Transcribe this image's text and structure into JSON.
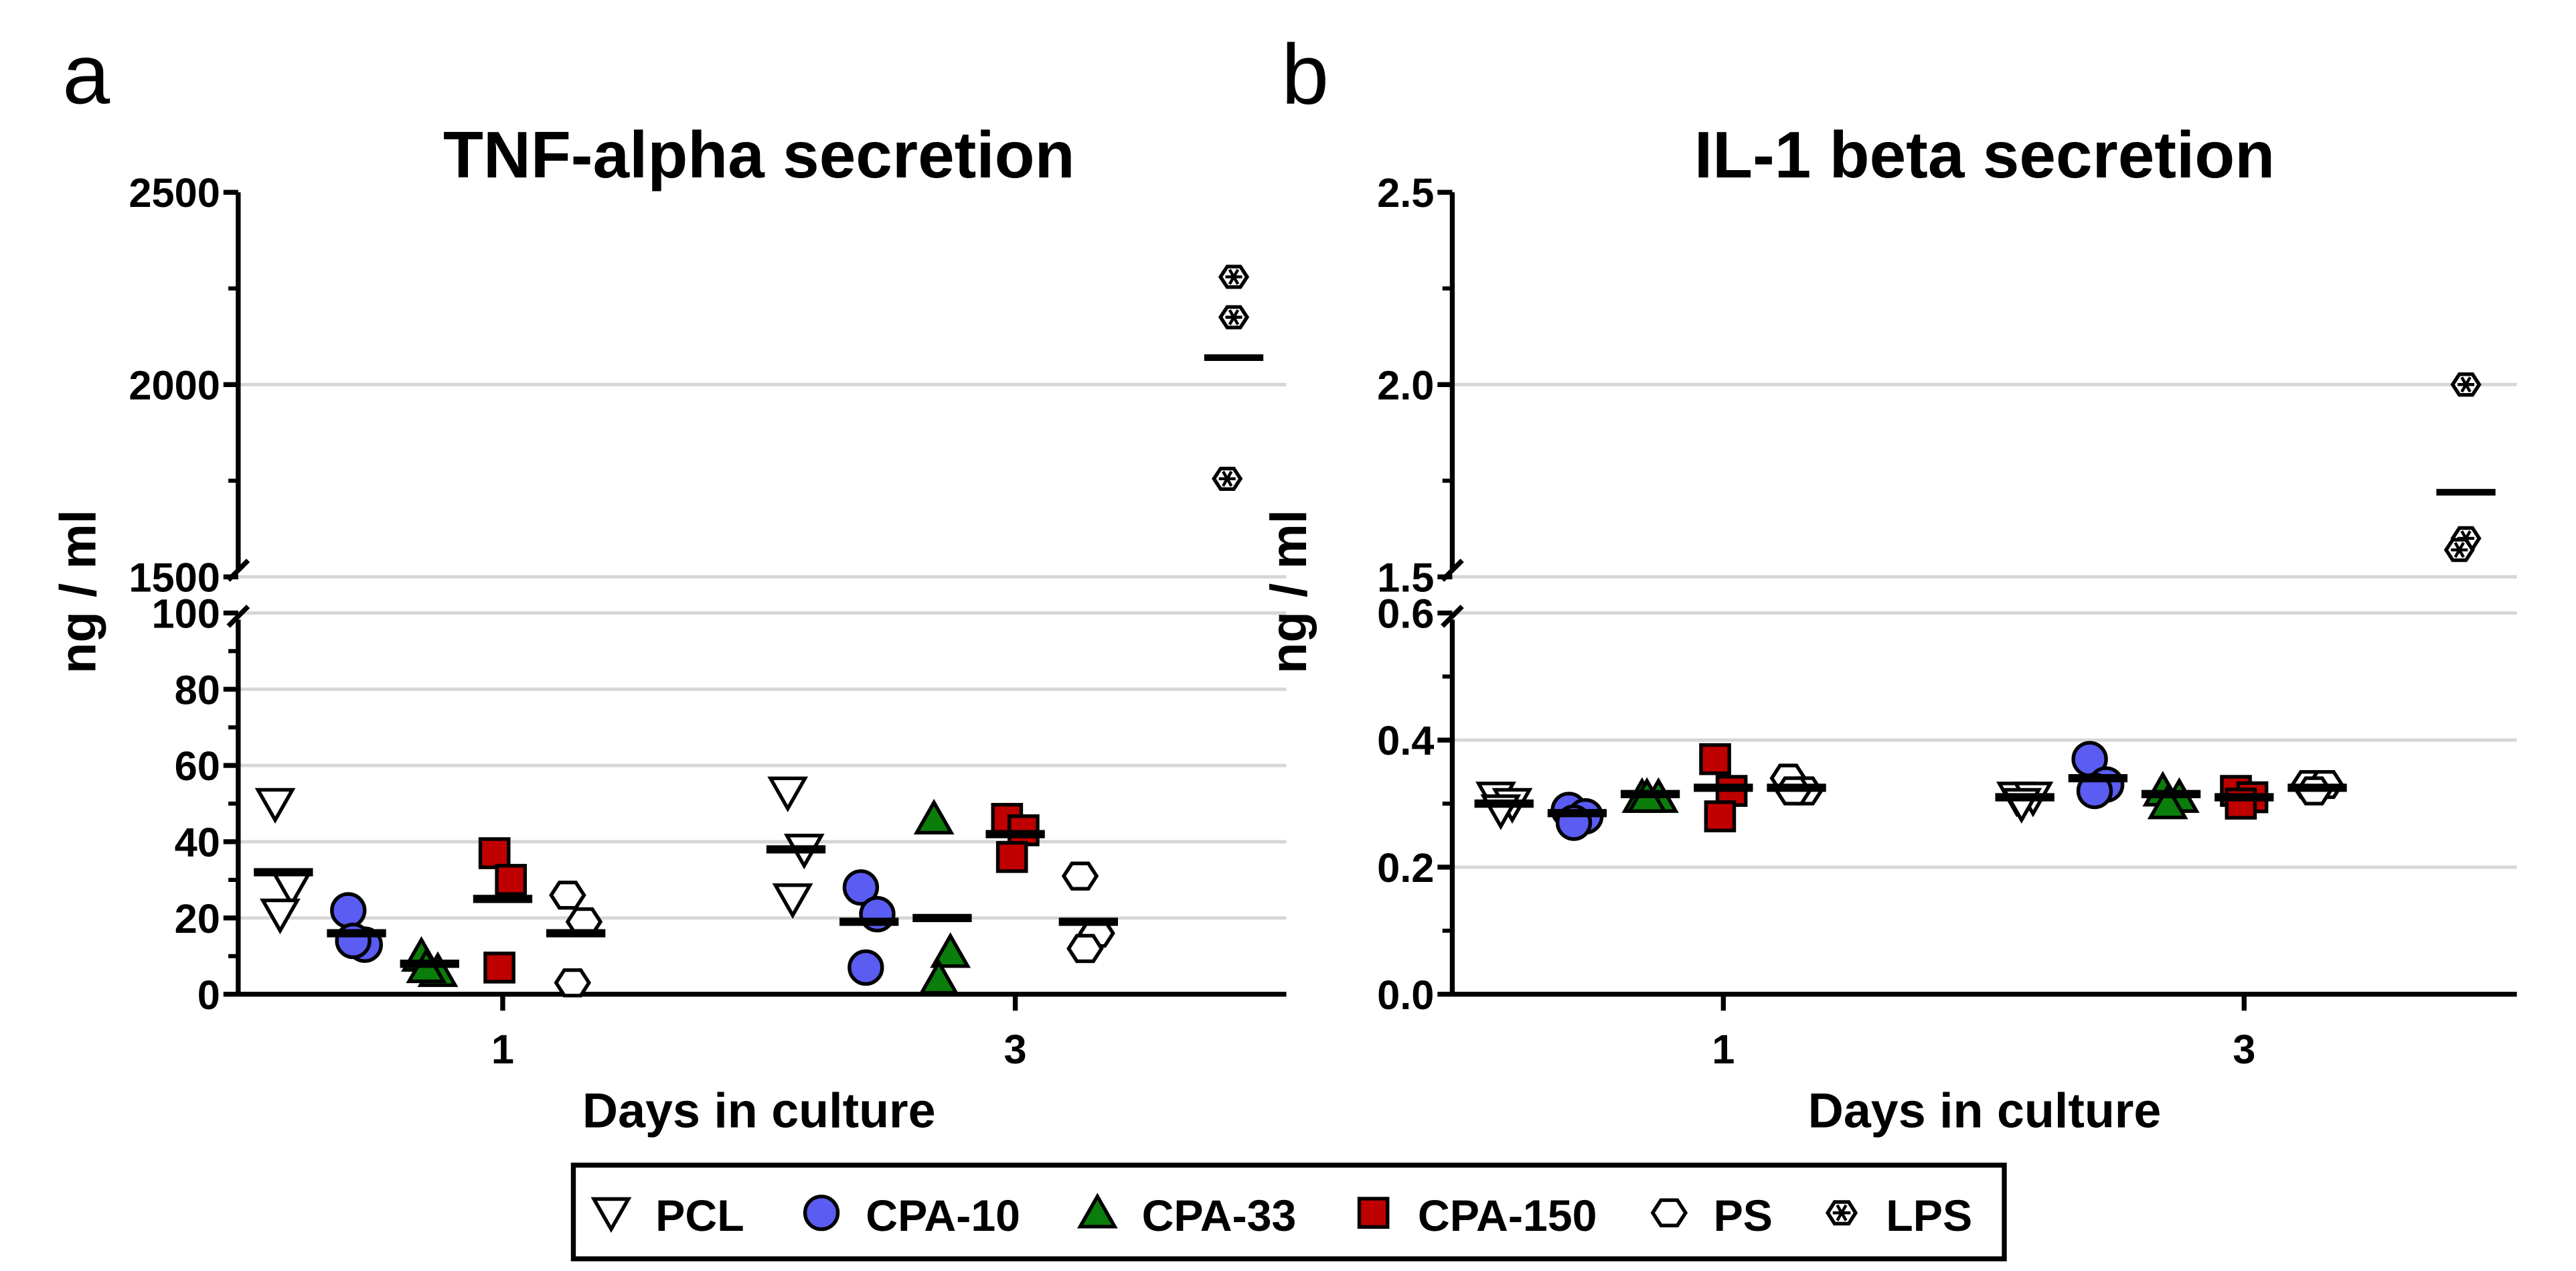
{
  "panels": [
    "a",
    "b"
  ],
  "legend": [
    {
      "name": "PCL",
      "symbol": "triangle-down-open",
      "color": "#ffffff"
    },
    {
      "name": "CPA-10",
      "symbol": "circle",
      "color": "#5b5cf2"
    },
    {
      "name": "CPA-33",
      "symbol": "triangle-up",
      "color": "#0b7d0b"
    },
    {
      "name": "CPA-150",
      "symbol": "square",
      "color": "#bf0000"
    },
    {
      "name": "PS",
      "symbol": "hexagon-open",
      "color": "#ffffff"
    },
    {
      "name": "LPS",
      "symbol": "hexagon-asterisk",
      "color": "#ffffff"
    }
  ],
  "chart_data": [
    {
      "type": "scatter",
      "title": "TNF-alpha secretion",
      "ylabel": "ng / ml",
      "xlabel": "Days in culture",
      "x_categories": [
        "1",
        "3"
      ],
      "y_axis_broken": true,
      "ylim_lower": [
        0,
        100
      ],
      "yticks_lower": [
        "0",
        "20",
        "40",
        "60",
        "80",
        "100"
      ],
      "ylim_upper": [
        1500,
        2500
      ],
      "yticks_upper": [
        "1500",
        "2000",
        "2500"
      ],
      "grid": true,
      "series": [
        {
          "name": "PCL",
          "points": {
            "1": [
              50,
              28,
              21
            ],
            "3": [
              53,
              38,
              25
            ]
          },
          "mean": {
            "1": 32,
            "3": 38
          }
        },
        {
          "name": "CPA-10",
          "points": {
            "1": [
              22,
              13,
              14
            ],
            "3": [
              28,
              21,
              7
            ]
          },
          "mean": {
            "1": 16,
            "3": 19
          }
        },
        {
          "name": "CPA-33",
          "points": {
            "1": [
              10,
              6,
              7
            ],
            "3": [
              46,
              11,
              4
            ]
          },
          "mean": {
            "1": 8,
            "3": 20
          }
        },
        {
          "name": "CPA-150",
          "points": {
            "1": [
              37,
              30,
              7
            ],
            "3": [
              46,
              43,
              36
            ]
          },
          "mean": {
            "1": 25,
            "3": 42
          }
        },
        {
          "name": "PS",
          "points": {
            "1": [
              26,
              19,
              3
            ],
            "3": [
              31,
              16,
              12
            ]
          },
          "mean": {
            "1": 16,
            "3": 19
          }
        }
      ],
      "control": {
        "name": "LPS",
        "points": [
          2280,
          2175,
          1755
        ],
        "mean": 2070
      }
    },
    {
      "type": "scatter",
      "title": "IL-1 beta secretion",
      "ylabel": "ng / ml",
      "xlabel": "Days in culture",
      "x_categories": [
        "1",
        "3"
      ],
      "y_axis_broken": true,
      "ylim_lower": [
        0,
        0.6
      ],
      "yticks_lower": [
        "0.0",
        "0.2",
        "0.4",
        "0.6"
      ],
      "ylim_upper": [
        1.5,
        2.5
      ],
      "yticks_upper": [
        "1.5",
        "2.0",
        "2.5"
      ],
      "grid": true,
      "series": [
        {
          "name": "PCL",
          "points": {
            "1": [
              0.31,
              0.3,
              0.29
            ],
            "3": [
              0.31,
              0.31,
              0.3
            ]
          },
          "mean": {
            "1": 0.3,
            "3": 0.31
          }
        },
        {
          "name": "CPA-10",
          "points": {
            "1": [
              0.29,
              0.28,
              0.27
            ],
            "3": [
              0.37,
              0.33,
              0.32
            ]
          },
          "mean": {
            "1": 0.285,
            "3": 0.34
          }
        },
        {
          "name": "CPA-33",
          "points": {
            "1": [
              0.31,
              0.31,
              0.31
            ],
            "3": [
              0.32,
              0.31,
              0.3
            ]
          },
          "mean": {
            "1": 0.315,
            "3": 0.315
          }
        },
        {
          "name": "CPA-150",
          "points": {
            "1": [
              0.37,
              0.32,
              0.28
            ],
            "3": [
              0.32,
              0.31,
              0.3
            ]
          },
          "mean": {
            "1": 0.325,
            "3": 0.31
          }
        },
        {
          "name": "PS",
          "points": {
            "1": [
              0.34,
              0.32,
              0.32
            ],
            "3": [
              0.33,
              0.33,
              0.32
            ]
          },
          "mean": {
            "1": 0.325,
            "3": 0.325
          }
        }
      ],
      "control": {
        "name": "LPS",
        "points": [
          2.0,
          1.6,
          1.57
        ],
        "mean": 1.72
      }
    }
  ]
}
